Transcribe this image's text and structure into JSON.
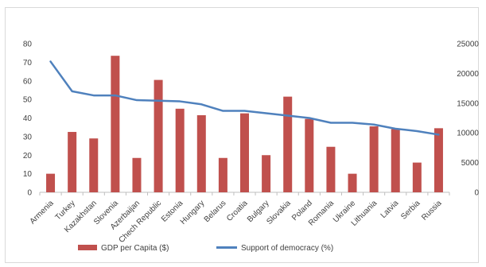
{
  "chart_data": {
    "type": "bar+line",
    "title": "",
    "categories": [
      "Armenia",
      "Turkey",
      "Kazakhstan",
      "Slovenia",
      "Azerbaijan",
      "Chech Republic",
      "Estonia",
      "Hungary",
      "Belarus",
      "Croatia",
      "Bulgary",
      "Slovakia",
      "Poland",
      "Romania",
      "Ukraine",
      "Lithuania",
      "Latvia",
      "Serbia",
      "Russia"
    ],
    "series": [
      {
        "name": "GDP per Capita ($)",
        "type": "bar",
        "axis": "left",
        "color": "#c0504d",
        "values": [
          10,
          32.5,
          29,
          73.5,
          18.5,
          60.5,
          45,
          41.5,
          18.5,
          42.5,
          20,
          51.5,
          39.5,
          24.5,
          10,
          35.5,
          34,
          16,
          34.5
        ]
      },
      {
        "name": "Support of democracy (%)",
        "type": "line",
        "axis": "right",
        "color": "#4f81bd",
        "values": [
          22000,
          17000,
          16300,
          16300,
          15500,
          15400,
          15300,
          14800,
          13700,
          13700,
          13300,
          12900,
          12500,
          11700,
          11700,
          11400,
          10700,
          10300,
          9700
        ]
      }
    ],
    "yleft": {
      "min": 0,
      "max": 80,
      "step": 10
    },
    "yright": {
      "min": 0,
      "max": 25000,
      "step": 5000
    },
    "left_ticks": [
      "0",
      "10",
      "20",
      "30",
      "40",
      "50",
      "60",
      "70",
      "80"
    ],
    "right_ticks": [
      "0",
      "5000",
      "10000",
      "15000",
      "20000",
      "25000"
    ],
    "grid": false,
    "legend_position": "bottom"
  }
}
